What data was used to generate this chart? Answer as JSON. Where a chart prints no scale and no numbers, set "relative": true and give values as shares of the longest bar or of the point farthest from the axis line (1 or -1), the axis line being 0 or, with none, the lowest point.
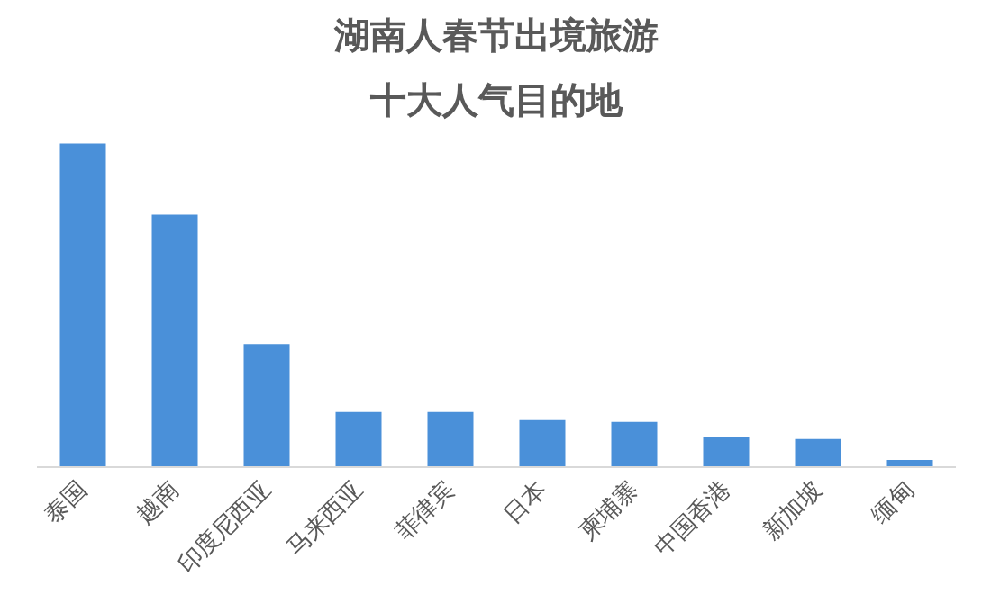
{
  "chart_data": {
    "type": "bar",
    "title": "湖南人春节出境旅游",
    "subtitle": "十大人气目的地",
    "categories": [
      "泰国",
      "越南",
      "印度尼西亚",
      "马来西亚",
      "菲律宾",
      "日本",
      "柬埔寨",
      "中国香港",
      "新加坡",
      "缅甸"
    ],
    "values": [
      1,
      0.78,
      0.38,
      0.17,
      0.17,
      0.145,
      0.14,
      0.094,
      0.087,
      0.022
    ],
    "color": "#4a90d9",
    "relative": true,
    "grid": false
  }
}
